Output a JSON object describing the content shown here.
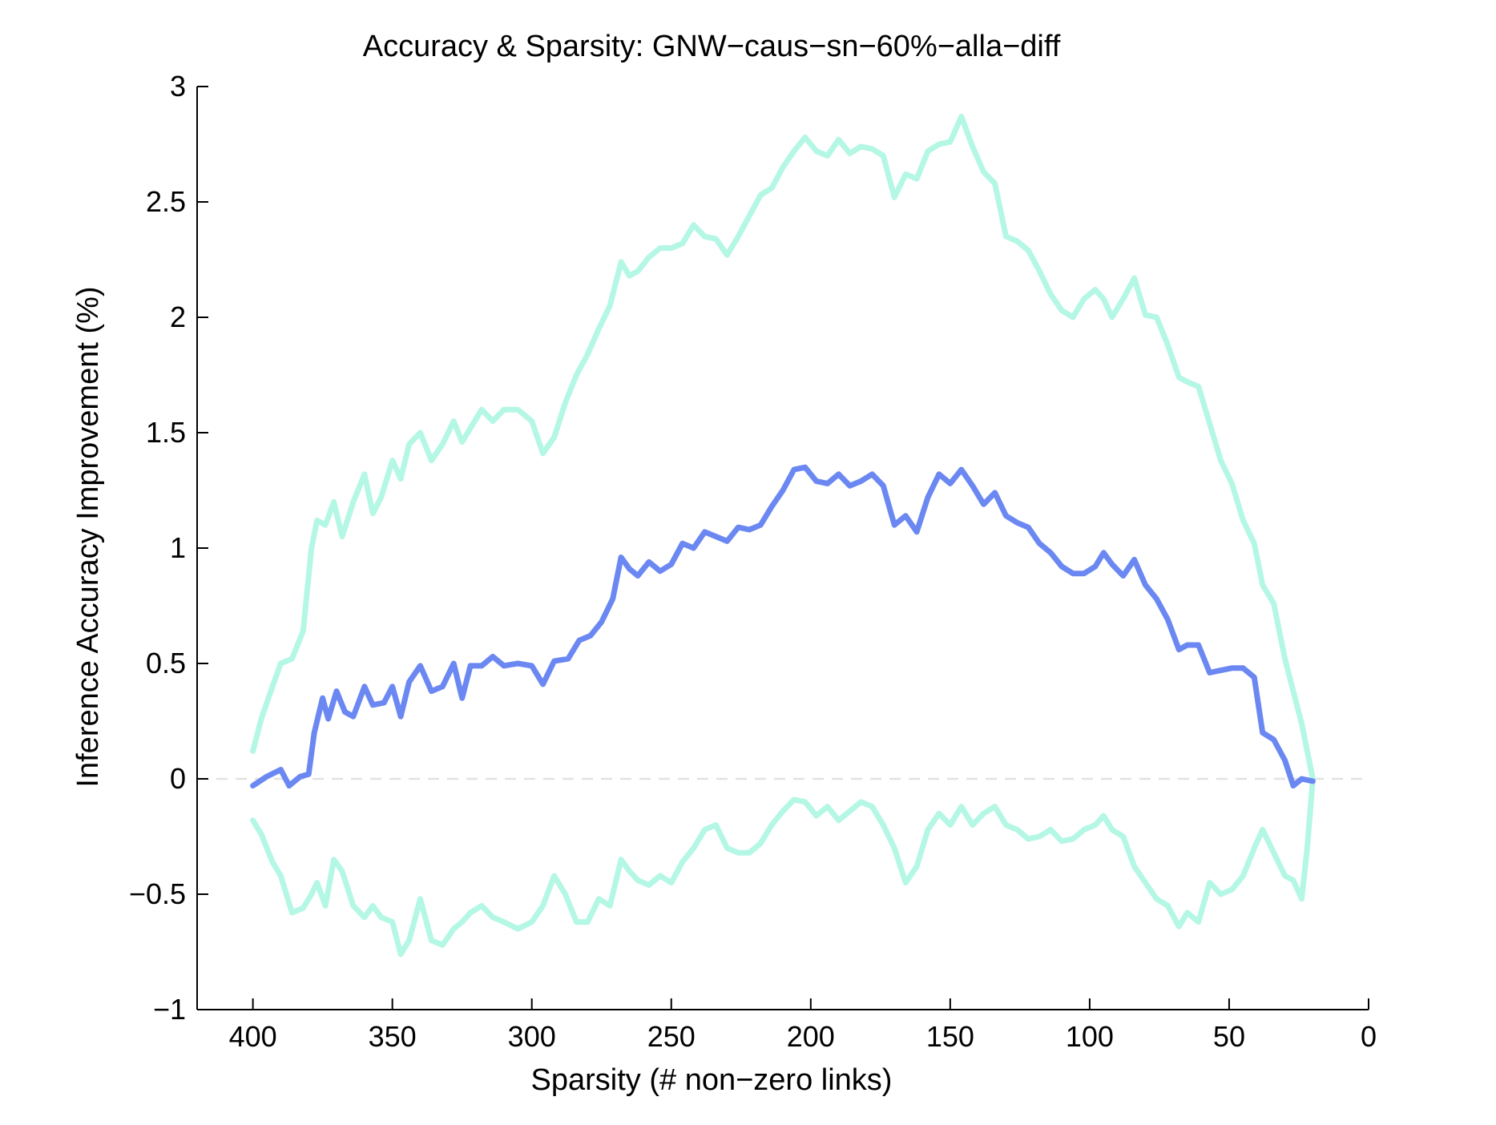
{
  "chart_data": {
    "type": "line",
    "title": "Accuracy & Sparsity: GNW−caus−sn−60%−alla−diff",
    "xlabel": "Sparsity (# non−zero links)",
    "ylabel": "Inference Accuracy Improvement (%)",
    "xlim": [
      420,
      0
    ],
    "ylim": [
      -1,
      3
    ],
    "x_reversed": true,
    "x_ticks": [
      400,
      350,
      300,
      250,
      200,
      150,
      100,
      50,
      0
    ],
    "y_ticks": [
      3,
      2.5,
      2,
      1.5,
      1,
      0.5,
      0,
      -0.5,
      -1
    ],
    "x_tick_labels": [
      "400",
      "350",
      "300",
      "250",
      "200",
      "150",
      "100",
      "50",
      "0"
    ],
    "y_tick_labels": [
      "3",
      "2.5",
      "2",
      "1.5",
      "1",
      "0.5",
      "0",
      "−0.5",
      "−1"
    ],
    "reference_line": {
      "y": 0,
      "color": "#e2e2e2",
      "style": "dashed"
    },
    "grid": false,
    "series": [
      {
        "role": "mean",
        "color": "#6b88f2",
        "width": 7,
        "points": [
          [
            400,
            -0.03
          ],
          [
            395,
            0.01
          ],
          [
            390,
            0.04
          ],
          [
            387,
            -0.03
          ],
          [
            383,
            0.01
          ],
          [
            380,
            0.02
          ],
          [
            378,
            0.2
          ],
          [
            375,
            0.35
          ],
          [
            373,
            0.26
          ],
          [
            370,
            0.38
          ],
          [
            367,
            0.29
          ],
          [
            364,
            0.27
          ],
          [
            360,
            0.4
          ],
          [
            357,
            0.32
          ],
          [
            353,
            0.33
          ],
          [
            350,
            0.4
          ],
          [
            347,
            0.27
          ],
          [
            344,
            0.42
          ],
          [
            340,
            0.49
          ],
          [
            336,
            0.38
          ],
          [
            332,
            0.4
          ],
          [
            328,
            0.5
          ],
          [
            325,
            0.35
          ],
          [
            322,
            0.49
          ],
          [
            318,
            0.49
          ],
          [
            314,
            0.53
          ],
          [
            310,
            0.49
          ],
          [
            305,
            0.5
          ],
          [
            300,
            0.49
          ],
          [
            296,
            0.41
          ],
          [
            292,
            0.51
          ],
          [
            287,
            0.52
          ],
          [
            283,
            0.6
          ],
          [
            279,
            0.62
          ],
          [
            275,
            0.68
          ],
          [
            271,
            0.78
          ],
          [
            268,
            0.96
          ],
          [
            265,
            0.91
          ],
          [
            262,
            0.88
          ],
          [
            258,
            0.94
          ],
          [
            254,
            0.9
          ],
          [
            250,
            0.93
          ],
          [
            246,
            1.02
          ],
          [
            242,
            1.0
          ],
          [
            238,
            1.07
          ],
          [
            234,
            1.05
          ],
          [
            230,
            1.03
          ],
          [
            226,
            1.09
          ],
          [
            222,
            1.08
          ],
          [
            218,
            1.1
          ],
          [
            214,
            1.18
          ],
          [
            210,
            1.25
          ],
          [
            206,
            1.34
          ],
          [
            202,
            1.35
          ],
          [
            198,
            1.29
          ],
          [
            194,
            1.28
          ],
          [
            190,
            1.32
          ],
          [
            186,
            1.27
          ],
          [
            182,
            1.29
          ],
          [
            178,
            1.32
          ],
          [
            174,
            1.27
          ],
          [
            170,
            1.1
          ],
          [
            166,
            1.14
          ],
          [
            162,
            1.07
          ],
          [
            158,
            1.22
          ],
          [
            154,
            1.32
          ],
          [
            150,
            1.28
          ],
          [
            146,
            1.34
          ],
          [
            142,
            1.27
          ],
          [
            138,
            1.19
          ],
          [
            134,
            1.24
          ],
          [
            130,
            1.14
          ],
          [
            126,
            1.11
          ],
          [
            122,
            1.09
          ],
          [
            118,
            1.02
          ],
          [
            114,
            0.98
          ],
          [
            110,
            0.92
          ],
          [
            106,
            0.89
          ],
          [
            102,
            0.89
          ],
          [
            98,
            0.92
          ],
          [
            95,
            0.98
          ],
          [
            92,
            0.93
          ],
          [
            88,
            0.88
          ],
          [
            84,
            0.95
          ],
          [
            80,
            0.84
          ],
          [
            76,
            0.78
          ],
          [
            72,
            0.69
          ],
          [
            68,
            0.56
          ],
          [
            65,
            0.58
          ],
          [
            61,
            0.58
          ],
          [
            57,
            0.46
          ],
          [
            53,
            0.47
          ],
          [
            49,
            0.48
          ],
          [
            45,
            0.48
          ],
          [
            41,
            0.44
          ],
          [
            38,
            0.2
          ],
          [
            34,
            0.17
          ],
          [
            30,
            0.08
          ],
          [
            27,
            -0.03
          ],
          [
            24,
            0.0
          ],
          [
            20,
            -0.01
          ]
        ]
      },
      {
        "role": "upper-band",
        "color": "#b4f7e4",
        "width": 7,
        "points": [
          [
            400,
            0.12
          ],
          [
            397,
            0.26
          ],
          [
            393,
            0.4
          ],
          [
            390,
            0.5
          ],
          [
            386,
            0.52
          ],
          [
            382,
            0.64
          ],
          [
            379,
            1.0
          ],
          [
            377,
            1.12
          ],
          [
            374,
            1.1
          ],
          [
            371,
            1.2
          ],
          [
            368,
            1.05
          ],
          [
            364,
            1.2
          ],
          [
            360,
            1.32
          ],
          [
            357,
            1.15
          ],
          [
            354,
            1.22
          ],
          [
            350,
            1.38
          ],
          [
            347,
            1.3
          ],
          [
            344,
            1.45
          ],
          [
            340,
            1.5
          ],
          [
            336,
            1.38
          ],
          [
            332,
            1.45
          ],
          [
            328,
            1.55
          ],
          [
            325,
            1.46
          ],
          [
            322,
            1.52
          ],
          [
            318,
            1.6
          ],
          [
            314,
            1.55
          ],
          [
            310,
            1.6
          ],
          [
            305,
            1.6
          ],
          [
            300,
            1.55
          ],
          [
            296,
            1.41
          ],
          [
            292,
            1.48
          ],
          [
            288,
            1.63
          ],
          [
            284,
            1.75
          ],
          [
            280,
            1.84
          ],
          [
            276,
            1.95
          ],
          [
            272,
            2.05
          ],
          [
            268,
            2.24
          ],
          [
            265,
            2.18
          ],
          [
            262,
            2.2
          ],
          [
            258,
            2.26
          ],
          [
            254,
            2.3
          ],
          [
            250,
            2.3
          ],
          [
            246,
            2.32
          ],
          [
            242,
            2.4
          ],
          [
            238,
            2.35
          ],
          [
            234,
            2.34
          ],
          [
            230,
            2.27
          ],
          [
            226,
            2.35
          ],
          [
            222,
            2.44
          ],
          [
            218,
            2.53
          ],
          [
            214,
            2.56
          ],
          [
            210,
            2.65
          ],
          [
            206,
            2.72
          ],
          [
            202,
            2.78
          ],
          [
            198,
            2.72
          ],
          [
            194,
            2.7
          ],
          [
            190,
            2.77
          ],
          [
            186,
            2.71
          ],
          [
            182,
            2.74
          ],
          [
            178,
            2.73
          ],
          [
            174,
            2.7
          ],
          [
            170,
            2.52
          ],
          [
            166,
            2.62
          ],
          [
            162,
            2.6
          ],
          [
            158,
            2.72
          ],
          [
            154,
            2.75
          ],
          [
            150,
            2.76
          ],
          [
            146,
            2.87
          ],
          [
            142,
            2.74
          ],
          [
            138,
            2.63
          ],
          [
            134,
            2.58
          ],
          [
            130,
            2.35
          ],
          [
            126,
            2.33
          ],
          [
            122,
            2.29
          ],
          [
            118,
            2.2
          ],
          [
            114,
            2.1
          ],
          [
            110,
            2.03
          ],
          [
            106,
            2.0
          ],
          [
            102,
            2.08
          ],
          [
            98,
            2.12
          ],
          [
            95,
            2.08
          ],
          [
            92,
            2.0
          ],
          [
            88,
            2.08
          ],
          [
            84,
            2.17
          ],
          [
            80,
            2.01
          ],
          [
            76,
            2.0
          ],
          [
            72,
            1.88
          ],
          [
            68,
            1.74
          ],
          [
            65,
            1.72
          ],
          [
            61,
            1.7
          ],
          [
            57,
            1.54
          ],
          [
            53,
            1.38
          ],
          [
            49,
            1.28
          ],
          [
            45,
            1.12
          ],
          [
            41,
            1.02
          ],
          [
            38,
            0.84
          ],
          [
            34,
            0.76
          ],
          [
            30,
            0.52
          ],
          [
            27,
            0.38
          ],
          [
            24,
            0.24
          ],
          [
            22,
            0.12
          ],
          [
            20,
            0.0
          ]
        ]
      },
      {
        "role": "lower-band",
        "color": "#b4f7e4",
        "width": 7,
        "points": [
          [
            400,
            -0.18
          ],
          [
            397,
            -0.24
          ],
          [
            393,
            -0.36
          ],
          [
            390,
            -0.42
          ],
          [
            386,
            -0.58
          ],
          [
            382,
            -0.56
          ],
          [
            379,
            -0.5
          ],
          [
            377,
            -0.45
          ],
          [
            374,
            -0.55
          ],
          [
            371,
            -0.35
          ],
          [
            368,
            -0.4
          ],
          [
            364,
            -0.55
          ],
          [
            360,
            -0.6
          ],
          [
            357,
            -0.55
          ],
          [
            354,
            -0.6
          ],
          [
            350,
            -0.62
          ],
          [
            347,
            -0.76
          ],
          [
            344,
            -0.7
          ],
          [
            340,
            -0.52
          ],
          [
            336,
            -0.7
          ],
          [
            332,
            -0.72
          ],
          [
            328,
            -0.65
          ],
          [
            325,
            -0.62
          ],
          [
            322,
            -0.58
          ],
          [
            318,
            -0.55
          ],
          [
            314,
            -0.6
          ],
          [
            310,
            -0.62
          ],
          [
            305,
            -0.65
          ],
          [
            300,
            -0.62
          ],
          [
            296,
            -0.55
          ],
          [
            292,
            -0.42
          ],
          [
            288,
            -0.5
          ],
          [
            284,
            -0.62
          ],
          [
            280,
            -0.62
          ],
          [
            276,
            -0.52
          ],
          [
            272,
            -0.55
          ],
          [
            268,
            -0.35
          ],
          [
            265,
            -0.4
          ],
          [
            262,
            -0.44
          ],
          [
            258,
            -0.46
          ],
          [
            254,
            -0.42
          ],
          [
            250,
            -0.45
          ],
          [
            246,
            -0.36
          ],
          [
            242,
            -0.3
          ],
          [
            238,
            -0.22
          ],
          [
            234,
            -0.2
          ],
          [
            230,
            -0.3
          ],
          [
            226,
            -0.32
          ],
          [
            222,
            -0.32
          ],
          [
            218,
            -0.28
          ],
          [
            214,
            -0.2
          ],
          [
            210,
            -0.14
          ],
          [
            206,
            -0.09
          ],
          [
            202,
            -0.1
          ],
          [
            198,
            -0.16
          ],
          [
            194,
            -0.12
          ],
          [
            190,
            -0.18
          ],
          [
            186,
            -0.14
          ],
          [
            182,
            -0.1
          ],
          [
            178,
            -0.12
          ],
          [
            174,
            -0.2
          ],
          [
            170,
            -0.3
          ],
          [
            166,
            -0.45
          ],
          [
            162,
            -0.38
          ],
          [
            158,
            -0.22
          ],
          [
            154,
            -0.15
          ],
          [
            150,
            -0.2
          ],
          [
            146,
            -0.12
          ],
          [
            142,
            -0.2
          ],
          [
            138,
            -0.15
          ],
          [
            134,
            -0.12
          ],
          [
            130,
            -0.2
          ],
          [
            126,
            -0.22
          ],
          [
            122,
            -0.26
          ],
          [
            118,
            -0.25
          ],
          [
            114,
            -0.22
          ],
          [
            110,
            -0.27
          ],
          [
            106,
            -0.26
          ],
          [
            102,
            -0.22
          ],
          [
            98,
            -0.2
          ],
          [
            95,
            -0.16
          ],
          [
            92,
            -0.22
          ],
          [
            88,
            -0.25
          ],
          [
            84,
            -0.38
          ],
          [
            80,
            -0.45
          ],
          [
            76,
            -0.52
          ],
          [
            72,
            -0.55
          ],
          [
            68,
            -0.64
          ],
          [
            65,
            -0.58
          ],
          [
            61,
            -0.62
          ],
          [
            57,
            -0.45
          ],
          [
            53,
            -0.5
          ],
          [
            49,
            -0.48
          ],
          [
            45,
            -0.42
          ],
          [
            41,
            -0.3
          ],
          [
            38,
            -0.22
          ],
          [
            34,
            -0.32
          ],
          [
            30,
            -0.42
          ],
          [
            27,
            -0.44
          ],
          [
            24,
            -0.52
          ],
          [
            22,
            -0.3
          ],
          [
            20,
            0.0
          ]
        ]
      }
    ]
  }
}
